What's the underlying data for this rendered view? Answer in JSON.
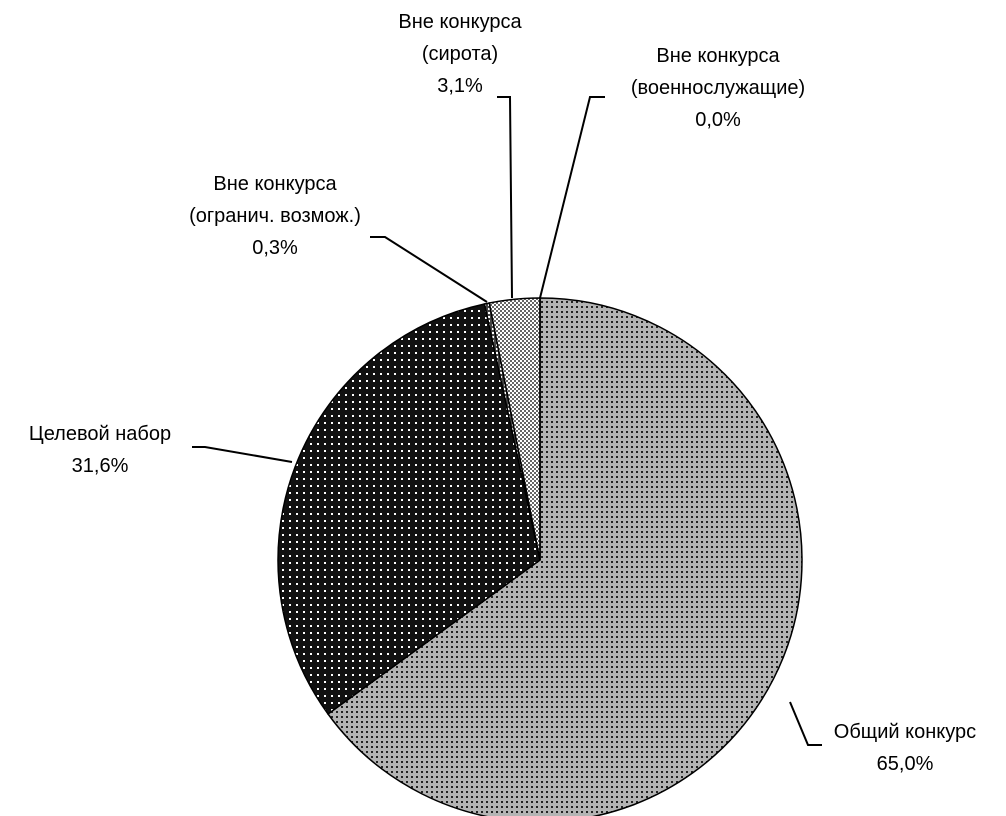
{
  "chart_data": {
    "type": "pie",
    "categories": [
      "Общий конкурс",
      "Целевой набор",
      "Вне конкурса\n(огранич. возмож.)",
      "Вне конкурса\n(сирота)",
      "Вне конкурса\n(военнослужащие)"
    ],
    "values": [
      65.0,
      31.6,
      0.3,
      3.1,
      0.0
    ],
    "value_labels": [
      "65,0%",
      "31,6%",
      "0,3%",
      "3,1%",
      "0,0%"
    ],
    "colors": [
      "#b4b4b4",
      "#111111",
      "#444444",
      "#666666",
      "#888888"
    ]
  }
}
